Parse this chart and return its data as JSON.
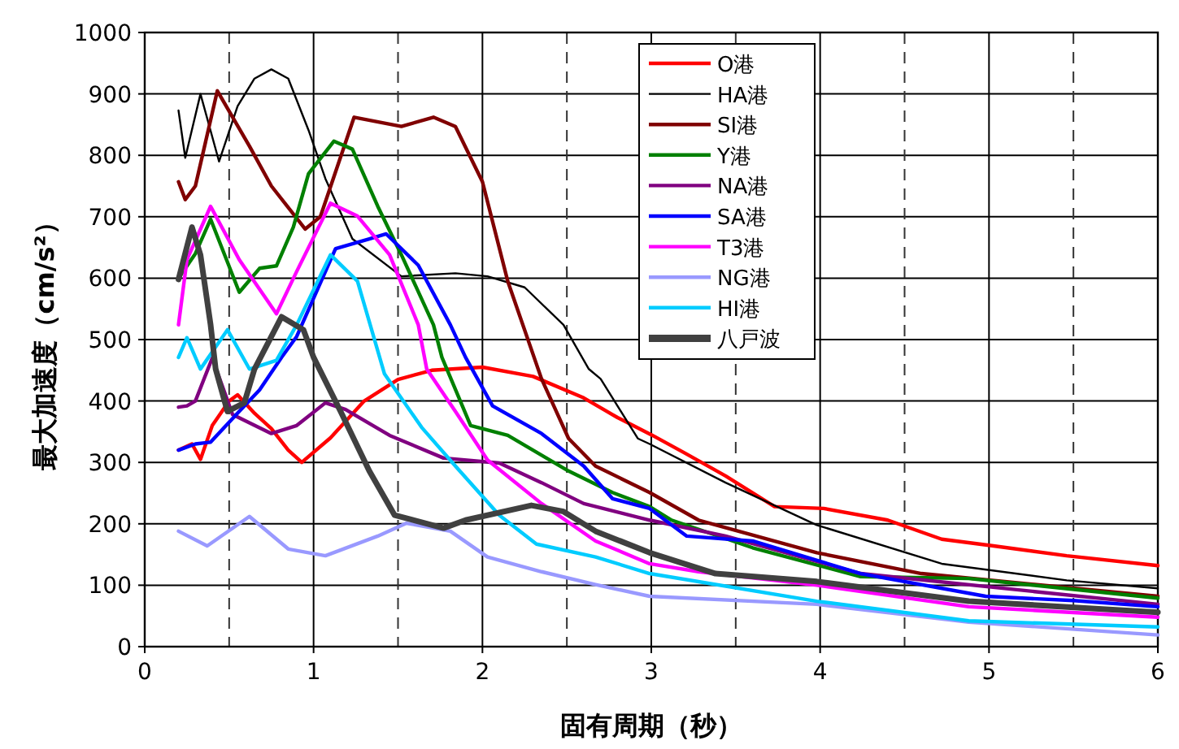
{
  "chart_data": {
    "type": "line",
    "xlabel": "固有周期（秒）",
    "ylabel": "最大加速度（cm/s²）",
    "xlim": [
      0,
      6
    ],
    "ylim": [
      0,
      1000
    ],
    "xticks": [
      0,
      {
        "value": 0.5,
        "label": null
      },
      1,
      {
        "value": 1.5,
        "label": null
      },
      2,
      {
        "value": 2.5,
        "label": null
      },
      3,
      {
        "value": 3.5,
        "label": null
      },
      4,
      {
        "value": 4.5,
        "label": null
      },
      5,
      {
        "value": 5.5,
        "label": null
      },
      6
    ],
    "yticks": [
      0,
      100,
      200,
      300,
      400,
      500,
      600,
      700,
      800,
      900,
      1000
    ],
    "grid": true,
    "legend": "top right",
    "series": [
      {
        "name": "O港",
        "color": "#ff0000",
        "x": [
          0.2,
          0.28,
          0.33,
          0.4,
          0.5,
          0.55,
          0.65,
          0.75,
          0.85,
          0.93,
          1.1,
          1.3,
          1.5,
          1.7,
          2.0,
          2.3,
          2.6,
          2.8,
          3.0,
          3.2,
          3.44,
          3.73,
          4.02,
          4.4,
          4.72,
          5.0,
          5.46,
          6.0
        ],
        "values": [
          320,
          330,
          305,
          360,
          400,
          410,
          380,
          355,
          320,
          300,
          340,
          400,
          435,
          450,
          455,
          440,
          405,
          373,
          345,
          315,
          278,
          228,
          225,
          206,
          175,
          165,
          148,
          132
        ]
      },
      {
        "name": "HA港",
        "color": "#000000",
        "x": [
          0.2,
          0.24,
          0.33,
          0.44,
          0.55,
          0.65,
          0.75,
          0.85,
          0.97,
          1.07,
          1.23,
          1.52,
          1.84,
          2.03,
          2.25,
          2.48,
          2.63,
          2.7,
          2.92,
          2.99,
          3.44,
          3.98,
          4.72,
          5.46,
          6.0
        ],
        "values": [
          873,
          796,
          900,
          790,
          880,
          925,
          940,
          925,
          841,
          762,
          664,
          603,
          608,
          603,
          585,
          524,
          452,
          436,
          339,
          330,
          267,
          198,
          135,
          108,
          95
        ]
      },
      {
        "name": "SI港",
        "color": "#800000",
        "x": [
          0.2,
          0.24,
          0.3,
          0.43,
          0.62,
          0.75,
          0.95,
          1.04,
          1.24,
          1.52,
          1.71,
          1.84,
          2.0,
          2.15,
          2.35,
          2.51,
          2.67,
          2.99,
          3.28,
          3.98,
          4.6,
          6.0
        ],
        "values": [
          757,
          728,
          750,
          905,
          815,
          750,
          680,
          700,
          862,
          847,
          862,
          847,
          757,
          595,
          436,
          339,
          294,
          251,
          206,
          153,
          119,
          82
        ]
      },
      {
        "name": "Y港",
        "color": "#008000",
        "x": [
          0.2,
          0.3,
          0.39,
          0.56,
          0.68,
          0.78,
          0.88,
          0.97,
          1.12,
          1.23,
          1.38,
          1.52,
          1.71,
          1.76,
          1.93,
          2.15,
          2.51,
          2.77,
          2.99,
          3.12,
          3.6,
          4.24,
          4.88,
          6.0
        ],
        "values": [
          600,
          640,
          696,
          577,
          616,
          620,
          683,
          770,
          823,
          810,
          717,
          638,
          524,
          471,
          360,
          344,
          286,
          251,
          228,
          206,
          161,
          114,
          111,
          79
        ]
      },
      {
        "name": "NA港",
        "color": "#800080",
        "x": [
          0.2,
          0.25,
          0.3,
          0.4,
          0.52,
          0.75,
          0.9,
          1.07,
          1.19,
          1.45,
          1.77,
          2.1,
          2.35,
          2.6,
          2.99,
          3.44,
          4.24,
          6.0
        ],
        "values": [
          390,
          392,
          400,
          470,
          378,
          347,
          360,
          397,
          386,
          344,
          307,
          299,
          267,
          233,
          206,
          180,
          119,
          69
        ]
      },
      {
        "name": "SA港",
        "color": "#0000ff",
        "x": [
          0.2,
          0.3,
          0.39,
          0.59,
          0.68,
          0.81,
          0.9,
          1.13,
          1.33,
          1.43,
          1.62,
          1.81,
          1.9,
          2.06,
          2.35,
          2.6,
          2.77,
          2.99,
          3.21,
          3.6,
          4.24,
          4.98,
          5.5,
          6.0
        ],
        "values": [
          320,
          330,
          333,
          392,
          418,
          471,
          505,
          648,
          664,
          672,
          621,
          524,
          471,
          392,
          347,
          294,
          241,
          225,
          180,
          172,
          119,
          82,
          75,
          65
        ]
      },
      {
        "name": "T3港",
        "color": "#ff00ff",
        "x": [
          0.2,
          0.25,
          0.39,
          0.56,
          0.78,
          0.9,
          1.1,
          1.26,
          1.45,
          1.62,
          1.67,
          1.84,
          2.03,
          2.35,
          2.67,
          2.99,
          3.28,
          3.98,
          4.88,
          6.0
        ],
        "values": [
          524,
          630,
          717,
          630,
          542,
          611,
          722,
          701,
          638,
          524,
          452,
          383,
          304,
          233,
          172,
          135,
          122,
          100,
          65,
          48
        ]
      },
      {
        "name": "NG港",
        "color": "#9999ff",
        "x": [
          0.2,
          0.37,
          0.62,
          0.85,
          1.07,
          1.38,
          1.55,
          1.81,
          2.03,
          2.35,
          2.67,
          2.99,
          3.98,
          4.88,
          6.0
        ],
        "values": [
          188,
          164,
          212,
          159,
          148,
          180,
          201,
          188,
          146,
          122,
          101,
          82,
          69,
          40,
          19
        ]
      },
      {
        "name": "HI港",
        "color": "#00ccff",
        "x": [
          0.2,
          0.25,
          0.33,
          0.49,
          0.62,
          0.78,
          0.9,
          1.1,
          1.26,
          1.42,
          1.64,
          1.84,
          2.1,
          2.32,
          2.67,
          2.99,
          3.98,
          4.88,
          6.0
        ],
        "values": [
          471,
          503,
          452,
          516,
          452,
          466,
          524,
          638,
          595,
          444,
          357,
          294,
          214,
          167,
          146,
          119,
          74,
          42,
          32
        ]
      },
      {
        "name": "八戸波",
        "color": "#404040",
        "x": [
          0.2,
          0.28,
          0.33,
          0.39,
          0.42,
          0.49,
          0.59,
          0.65,
          0.81,
          0.94,
          1.0,
          1.16,
          1.33,
          1.48,
          1.77,
          1.9,
          2.29,
          2.48,
          2.67,
          2.99,
          3.38,
          3.98,
          4.88,
          6.0
        ],
        "values": [
          598,
          683,
          638,
          524,
          452,
          383,
          397,
          452,
          537,
          516,
          471,
          383,
          286,
          214,
          193,
          206,
          230,
          220,
          188,
          153,
          119,
          106,
          74,
          56
        ]
      }
    ]
  }
}
